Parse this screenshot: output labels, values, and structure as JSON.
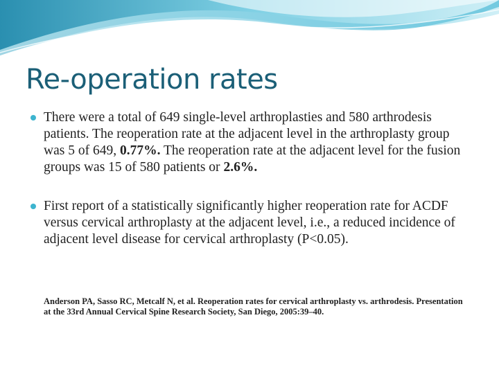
{
  "title": "Re-operation rates",
  "bullets": [
    [
      "There were a total of 649 single-level arthroplasties and 580 arthrodesis patients. The reoperation rate at the adjacent level in the arthroplasty group was 5 of 649, ",
      "0.77%.",
      " The reoperation rate at the adjacent level for the fusion groups was 15 of 580 patients or ",
      "2.6%."
    ],
    [
      "First report of a statistically significantly higher reoperation rate for ACDF versus cervical arthroplasty at the adjacent level, i.e., a reduced incidence of adjacent level disease for cervical arthroplasty (P<0.05)."
    ]
  ],
  "reference": "Anderson PA, Sasso RC, Metcalf N, et al. Reoperation rates for cervical arthroplasty vs. arthrodesis. Presentation at the 33rd Annual Cervical Spine Research Society, San Diego, 2005:39–40."
}
